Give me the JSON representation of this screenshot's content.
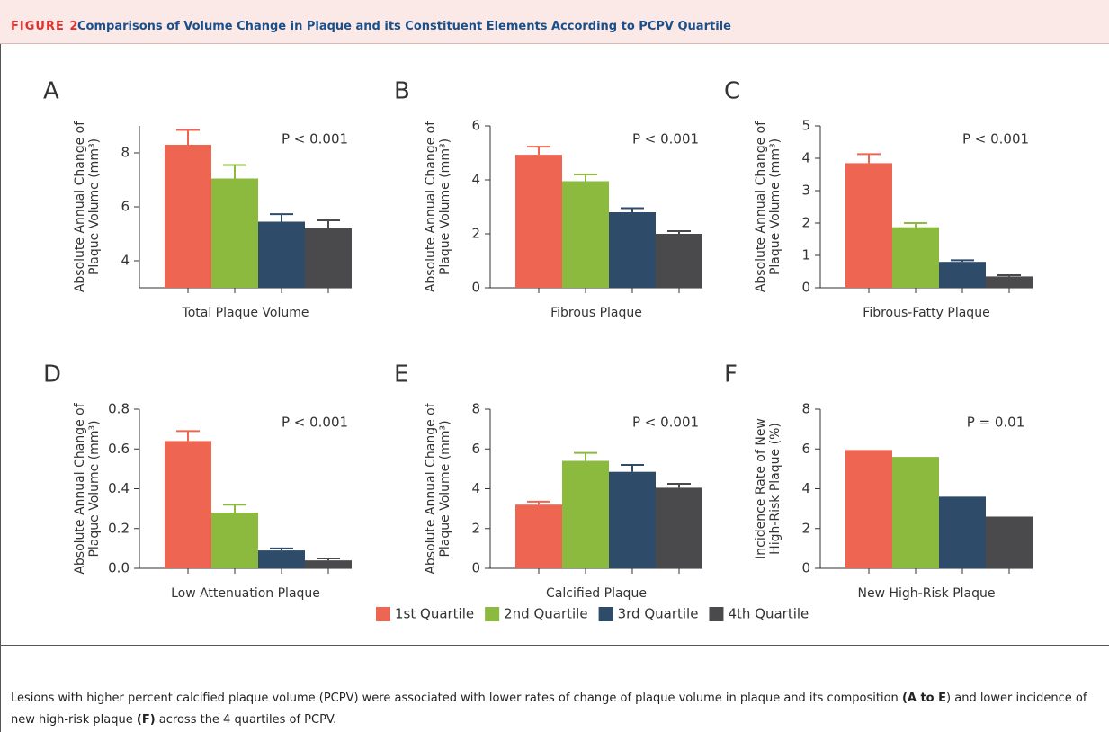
{
  "header": {
    "figure_label": "FIGURE 2",
    "title": "Comparisons of Volume Change in Plaque and its Constituent Elements According to PCPV Quartile"
  },
  "legend": [
    {
      "name": "1st Quartile",
      "color": "#ee6651"
    },
    {
      "name": "2nd Quartile",
      "color": "#8bba3f"
    },
    {
      "name": "3rd Quartile",
      "color": "#2f4b6a"
    },
    {
      "name": "4th Quartile",
      "color": "#4a4a4c"
    }
  ],
  "chart_data": [
    {
      "type": "bar",
      "panel": "A",
      "y_label": [
        "Absolute Annual Change of",
        "Plaque Volume (mm³)"
      ],
      "x_label": "Total Plaque Volume",
      "annotation": "P < 0.001",
      "values": [
        8.3,
        7.05,
        5.45,
        5.2
      ],
      "errors": [
        0.55,
        0.5,
        0.28,
        0.3
      ],
      "ylim": [
        3,
        9
      ],
      "yticks": [
        4,
        6,
        8
      ]
    },
    {
      "type": "bar",
      "panel": "B",
      "y_label": [
        "Absolute Annual Change of",
        "Plaque Volume (mm³)"
      ],
      "x_label": "Fibrous Plaque",
      "annotation": "P < 0.001",
      "values": [
        4.93,
        3.95,
        2.8,
        2.0
      ],
      "errors": [
        0.3,
        0.25,
        0.15,
        0.1
      ],
      "ylim": [
        0,
        6
      ],
      "yticks": [
        0,
        2,
        4,
        6
      ]
    },
    {
      "type": "bar",
      "panel": "C",
      "y_label": [
        "Absolute Annual Change of",
        "Plaque Volume (mm³)"
      ],
      "x_label": "Fibrous-Fatty Plaque",
      "annotation": "P < 0.001",
      "values": [
        3.85,
        1.87,
        0.8,
        0.35
      ],
      "errors": [
        0.28,
        0.13,
        0.05,
        0.04
      ],
      "ylim": [
        0,
        5
      ],
      "yticks": [
        0,
        1,
        2,
        3,
        4,
        5
      ]
    },
    {
      "type": "bar",
      "panel": "D",
      "y_label": [
        "Absolute Annual Change of",
        "Plaque Volume (mm³)"
      ],
      "x_label": "Low Attenuation Plaque",
      "annotation": "P < 0.001",
      "values": [
        0.64,
        0.28,
        0.09,
        0.04
      ],
      "errors": [
        0.05,
        0.04,
        0.01,
        0.01
      ],
      "ylim": [
        0,
        0.8
      ],
      "yticks": [
        {
          "value": 0,
          "label": "0.0"
        },
        0.2,
        0.4,
        0.6,
        0.8
      ]
    },
    {
      "type": "bar",
      "panel": "E",
      "y_label": [
        "Absolute Annual Change of",
        "Plaque Volume (mm³)"
      ],
      "x_label": "Calcified Plaque",
      "annotation": "P < 0.001",
      "values": [
        3.2,
        5.4,
        4.85,
        4.05
      ],
      "errors": [
        0.15,
        0.4,
        0.35,
        0.2
      ],
      "ylim": [
        0,
        8
      ],
      "yticks": [
        0,
        2,
        4,
        6,
        8
      ]
    },
    {
      "type": "bar",
      "panel": "F",
      "y_label": [
        "Incidence Rate of New",
        "High-Risk Plaque (%)"
      ],
      "x_label": "New High-Risk Plaque",
      "annotation": "P = 0.01",
      "values": [
        5.95,
        5.6,
        3.6,
        2.6
      ],
      "ylim": [
        0,
        8
      ],
      "yticks": [
        0,
        2,
        4,
        6,
        8
      ]
    }
  ],
  "caption": [
    {
      "text": "Lesions with higher percent calcified plaque volume (PCPV) were associated with lower rates of change of plaque volume in plaque and its composition ",
      "bold": false
    },
    {
      "text": "(A to E",
      "bold": true
    },
    {
      "text": ") and lower incidence of new high-risk plaque ",
      "bold": false
    },
    {
      "text": "(F)",
      "bold": true
    },
    {
      "text": " across the 4 quartiles of PCPV.",
      "bold": false
    }
  ]
}
